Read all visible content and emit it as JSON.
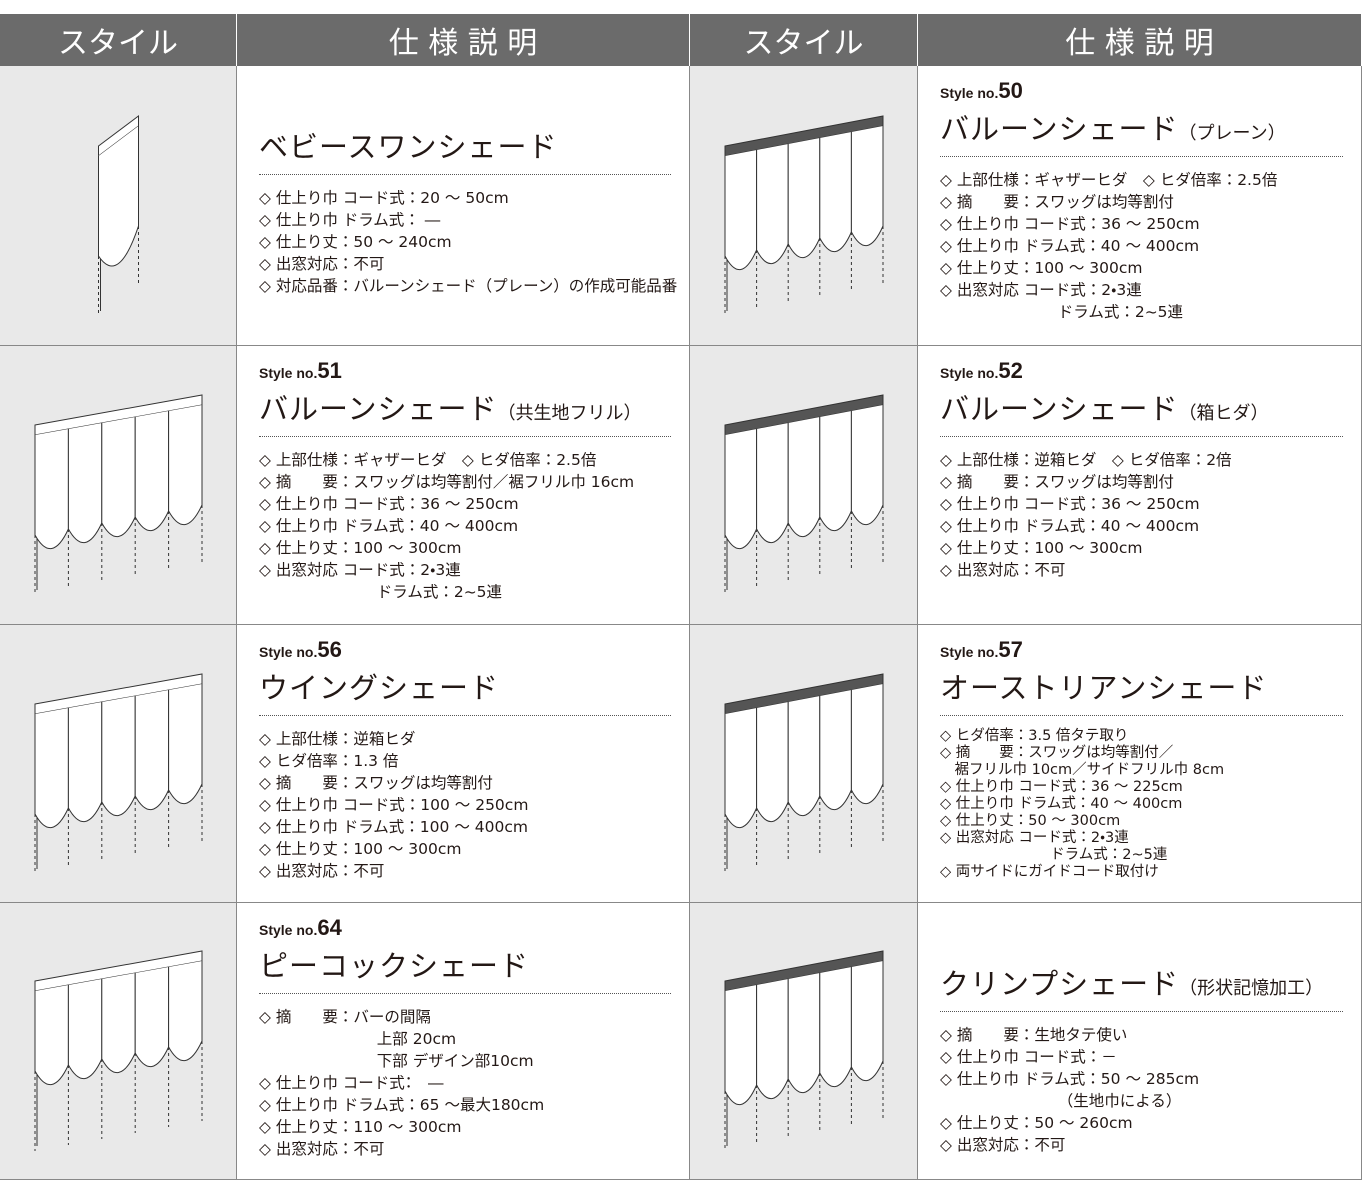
{
  "header": [
    "スタイル",
    "仕 様 説 明",
    "スタイル",
    "仕 様 説 明"
  ],
  "items": [
    {
      "name": "ベビースワンシェード",
      "specs": [
        "◇ 仕上り巾 コード式：20 ～ 50cm",
        "◇ 仕上り巾 ドラム式： ―",
        "◇ 仕上り丈：50 ～ 240cm",
        "◇ 出窓対応：不可",
        "◇ 対応品番：バルーンシェード（プレーン）の作成可能品番"
      ]
    },
    {
      "style_label": "Style no.",
      "style_no": "50",
      "name": "バルーンシェード",
      "suffix": "（プレーン）",
      "specs": [
        "◇ 上部仕様：ギャザーヒダ　◇ ヒダ倍率：2.5倍",
        "◇ 摘　　要：スワッグは均等割付",
        "◇ 仕上り巾 コード式：36 ～ 250cm",
        "◇ 仕上り巾 ドラム式：40 ～ 400cm",
        "◇ 仕上り丈：100 ～ 300cm",
        "◇ 出窓対応 コード式：2・3連",
        "ドラム式：2~5連"
      ]
    },
    {
      "style_label": "Style no.",
      "style_no": "51",
      "name": "バルーンシェード",
      "suffix": "（共生地フリル）",
      "specs": [
        "◇ 上部仕様：ギャザーヒダ　◇ ヒダ倍率：2.5倍",
        "◇ 摘　　要：スワッグは均等割付／裾フリル巾 16cm",
        "◇ 仕上り巾 コード式：36 ～ 250cm",
        "◇ 仕上り巾 ドラム式：40 ～ 400cm",
        "◇ 仕上り丈：100 ～ 300cm",
        "◇ 出窓対応 コード式：2・3連",
        "ドラム式：2~5連"
      ]
    },
    {
      "style_label": "Style no.",
      "style_no": "52",
      "name": "バルーンシェード",
      "suffix": "（箱ヒダ）",
      "specs": [
        "◇ 上部仕様：逆箱ヒダ　◇ ヒダ倍率：2倍",
        "◇ 摘　　要：スワッグは均等割付",
        "◇ 仕上り巾 コード式：36 ～ 250cm",
        "◇ 仕上り巾 ドラム式：40 ～ 400cm",
        "◇ 仕上り丈：100 ～ 300cm",
        "◇ 出窓対応：不可"
      ]
    },
    {
      "style_label": "Style no.",
      "style_no": "56",
      "name": "ウイングシェード",
      "specs": [
        "◇ 上部仕様：逆箱ヒダ",
        "◇ ヒダ倍率：1.3 倍",
        "◇ 摘　　要：スワッグは均等割付",
        "◇ 仕上り巾 コード式：100 ～ 250cm",
        "◇ 仕上り巾 ドラム式：100 ～ 400cm",
        "◇ 仕上り丈：100 ～ 300cm",
        "◇ 出窓対応：不可"
      ]
    },
    {
      "style_label": "Style no.",
      "style_no": "57",
      "name": "オーストリアンシェード",
      "specs": [
        "◇ ヒダ倍率：3.5 倍タテ取り",
        "◇ 摘　　要：スワッグは均等割付／",
        "裾フリル巾 10cm／サイドフリル巾 8cm",
        "◇ 仕上り巾 コード式：36 ～ 225cm",
        "◇ 仕上り巾 ドラム式：40 ～ 400cm",
        "◇ 仕上り丈：50 ～ 300cm",
        "◇ 出窓対応 コード式：2・3連",
        "ドラム式：2~5連",
        "◇ 両サイドにガイドコード取付け"
      ]
    },
    {
      "style_label": "Style no.",
      "style_no": "64",
      "name": "ピーコックシェード",
      "specs": [
        "◇ 摘　　要：バーの間隔",
        "上部 20cm",
        "下部 デザイン部10cm",
        "◇ 仕上り巾 コード式：　―",
        "◇ 仕上り巾 ドラム式：65 ～最大180cm",
        "◇ 仕上り丈：110 ～ 300cm",
        "◇ 出窓対応：不可"
      ]
    },
    {
      "name": "クリンプシェード",
      "suffix": "（形状記憶加工）",
      "specs": [
        "◇ 摘　　要：生地タテ使い",
        "◇ 仕上り巾 コード式：－",
        "◇ 仕上り巾 ドラム式：50 ～ 285cm",
        "（生地巾による）",
        "◇ 仕上り丈：50 ～ 260cm",
        "◇ 出窓対応：不可"
      ]
    }
  ]
}
